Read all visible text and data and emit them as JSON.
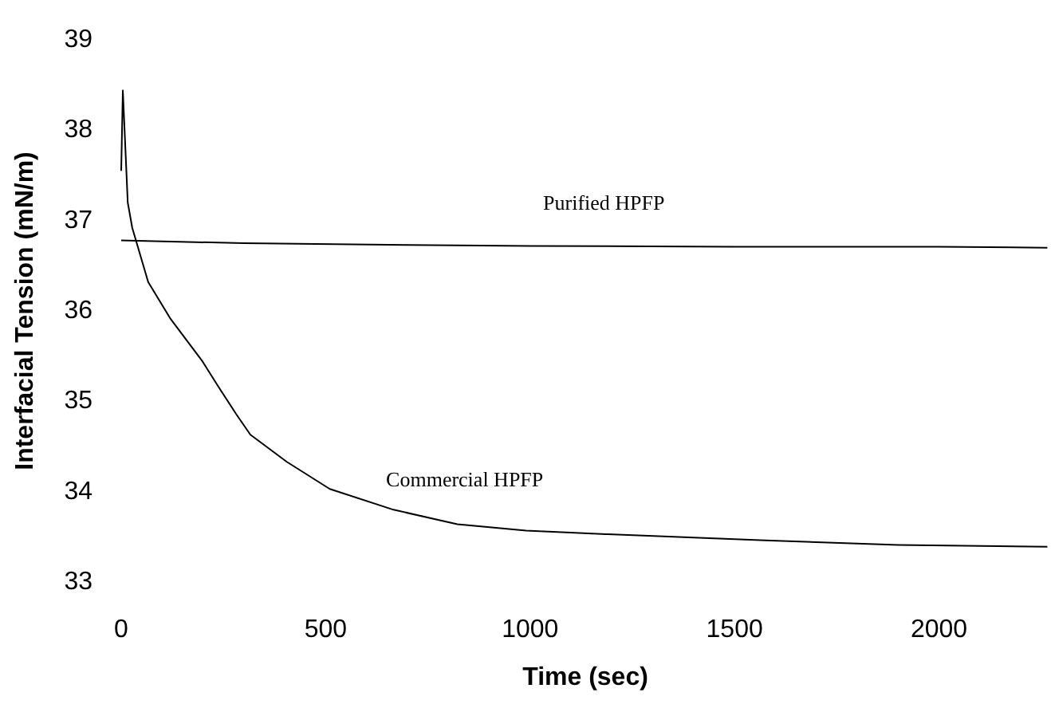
{
  "chart_data": {
    "type": "line",
    "xlabel": "Time (sec)",
    "ylabel": "Interfacial Tension (mN/m)",
    "xlim": [
      0,
      2270
    ],
    "xticks": [
      0,
      500,
      1000,
      1500,
      2000
    ],
    "ylim": [
      33,
      39
    ],
    "yticks": [
      33,
      34,
      35,
      36,
      37,
      38,
      39
    ],
    "grid": false,
    "legend": false,
    "marker": "none",
    "line_style": "solid",
    "series": [
      {
        "name": "Purified HPFP",
        "color": "#000000",
        "x": [
          0,
          300,
          700,
          1000,
          1500,
          2000,
          2265
        ],
        "values": [
          36.78,
          36.75,
          36.73,
          36.72,
          36.71,
          36.71,
          36.7
        ]
      },
      {
        "name": "Commercial HPFP",
        "color": "#000000",
        "x": [
          0,
          4,
          16,
          27,
          66,
          121,
          199,
          238,
          281,
          316,
          405,
          510,
          666,
          822,
          990,
          1185,
          1575,
          1900,
          2265
        ],
        "values": [
          37.55,
          38.44,
          37.2,
          36.92,
          36.32,
          35.91,
          35.44,
          35.16,
          34.86,
          34.63,
          34.33,
          34.03,
          33.8,
          33.64,
          33.57,
          33.53,
          33.46,
          33.41,
          33.39
        ]
      }
    ]
  }
}
